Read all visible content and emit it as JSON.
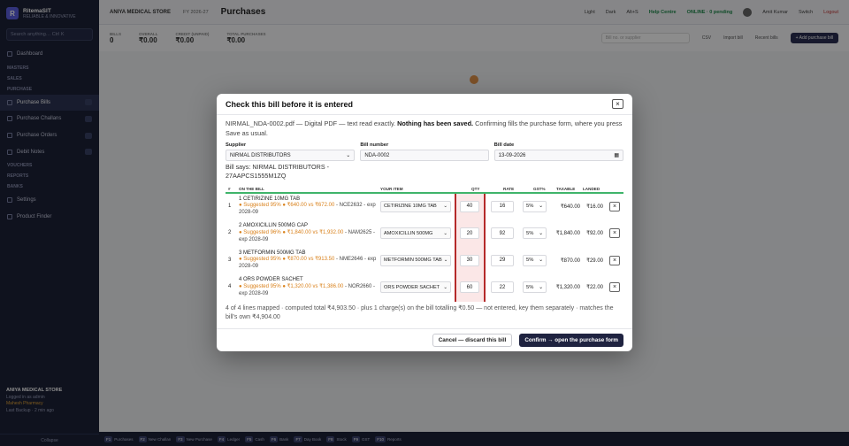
{
  "sidebar": {
    "brand_initial": "R",
    "brand_name": "RitemaSIT",
    "brand_sub": "RELIABLE & INNOVATIVE",
    "search_placeholder": "Search anything…  Ctrl K",
    "items": [
      {
        "label": "Dashboard",
        "type": "item"
      },
      {
        "label": "MASTERS",
        "type": "section"
      },
      {
        "label": "SALES",
        "type": "section"
      },
      {
        "label": "PURCHASE",
        "type": "section"
      },
      {
        "label": "Purchase Bills",
        "type": "item",
        "active": true
      },
      {
        "label": "Purchase Challans",
        "type": "item"
      },
      {
        "label": "Purchase Orders",
        "type": "item"
      },
      {
        "label": "Debit Notes",
        "type": "item"
      },
      {
        "label": "VOUCHERS",
        "type": "section"
      },
      {
        "label": "REPORTS",
        "type": "section"
      },
      {
        "label": "BANKS",
        "type": "section"
      },
      {
        "label": "Settings",
        "type": "item"
      },
      {
        "label": "Product Finder",
        "type": "item"
      }
    ],
    "footer_store": "ANIYA MEDICAL STORE",
    "footer_line": "Logged in as admin",
    "footer_warn": "Mahesh Pharmacy",
    "footer_sync": "Last Backup · 2 min ago",
    "collapse": "Collapse"
  },
  "topbar": {
    "store": "ANIYA MEDICAL STORE",
    "fy": "FY 2026-27",
    "page_title": "Purchases",
    "right": [
      "Light",
      "Dark",
      "Alt+S",
      "Help Centre",
      "ONLINE · 0 pending",
      "Amit Kumar",
      "Switch",
      "Logout"
    ]
  },
  "kpis": {
    "items": [
      {
        "label": "BILLS",
        "value": "0"
      },
      {
        "label": "OVERALL",
        "value": "₹0.00"
      },
      {
        "label": "CREDIT (UNPAID)",
        "value": "₹0.00"
      },
      {
        "label": "TOTAL PURCHASES",
        "value": "₹0.00"
      }
    ],
    "search_placeholder": "Bill no. or supplier",
    "tools": [
      "CSV",
      "Import bill",
      "Recent bills"
    ],
    "new_button": "+ Add purchase bill"
  },
  "modal": {
    "title": "Check this bill before it is entered",
    "note_prefix": "NIRMAL_NDA-0002.pdf — Digital PDF — text read exactly. ",
    "note_bold": "Nothing has been saved.",
    "note_suffix": " Confirming fills the purchase form, where you press Save as usual.",
    "supplier_label": "Supplier",
    "supplier_value": "NIRMAL DISTRIBUTORS",
    "bill_number_label": "Bill number",
    "bill_number_value": "NDA-0002",
    "bill_date_label": "Bill date",
    "bill_date_value": "13-09-2026",
    "bill_says": "Bill says: NIRMAL DISTRIBUTORS - 27AAPCS1555M1ZQ",
    "columns": {
      "num": "#",
      "on_bill": "ON THE BILL",
      "your_item": "YOUR ITEM",
      "qty": "QTY",
      "rate": "RATE",
      "gst": "GST%",
      "taxable": "TAXABLE",
      "landed": "LANDED"
    },
    "rows": [
      {
        "num": "1",
        "name": "1 CETIRIZINE 10MG TAB",
        "suggest": "● Suggested 95% ● ₹640.00 vs ₹672.00",
        "rest": " - NCE2632 - exp 2028-09",
        "item": "CETIRIZINE 10MG TAB",
        "qty": "40",
        "rate": "16",
        "gst": "5%",
        "taxable": "₹640.00",
        "landed": "₹16.00"
      },
      {
        "num": "2",
        "name": "2 AMOXICILLIN 500MG CAP",
        "suggest": "● Suggested 96% ● ₹1,840.00 vs ₹1,932.00",
        "rest": " - NAM2625 - exp 2028-09",
        "item": "AMOXICILLIN 500MG",
        "qty": "20",
        "rate": "92",
        "gst": "5%",
        "taxable": "₹1,840.00",
        "landed": "₹92.00"
      },
      {
        "num": "3",
        "name": "3 METFORMIN 500MG TAB",
        "suggest": "● Suggested 95% ● ₹870.00 vs ₹913.50",
        "rest": " - NME2646 - exp 2028-09",
        "item": "METFORMIN 500MG TAB",
        "qty": "30",
        "rate": "29",
        "gst": "5%",
        "taxable": "₹870.00",
        "landed": "₹29.00"
      },
      {
        "num": "4",
        "name": "4 ORS POWDER SACHET",
        "suggest": "● Suggested 95% ● ₹1,320.00 vs ₹1,386.00",
        "rest": " - NOR2660 - exp 2028-09",
        "item": "ORS POWDER SACHET",
        "qty": "60",
        "rate": "22",
        "gst": "5%",
        "taxable": "₹1,320.00",
        "landed": "₹22.00"
      }
    ],
    "summary": "4 of 4 lines mapped · computed total ₹4,903.50 · plus 1 charge(s) on the bill totalling ₹0.50 — not entered, key them separately · matches the bill's own ₹4,904.00",
    "cancel_label": "Cancel — discard this bill",
    "confirm_label": "Confirm → open the purchase form"
  },
  "statusbar": [
    {
      "key": "F1",
      "label": "Purchases"
    },
    {
      "key": "F2",
      "label": "New Challan"
    },
    {
      "key": "F3",
      "label": "New Purchase"
    },
    {
      "key": "F4",
      "label": "Ledger"
    },
    {
      "key": "F5",
      "label": "Cash"
    },
    {
      "key": "F6",
      "label": "Bank"
    },
    {
      "key": "F7",
      "label": "Day Book"
    },
    {
      "key": "F8",
      "label": "Stock"
    },
    {
      "key": "F9",
      "label": "GST"
    },
    {
      "key": "F10",
      "label": "Reports"
    }
  ]
}
